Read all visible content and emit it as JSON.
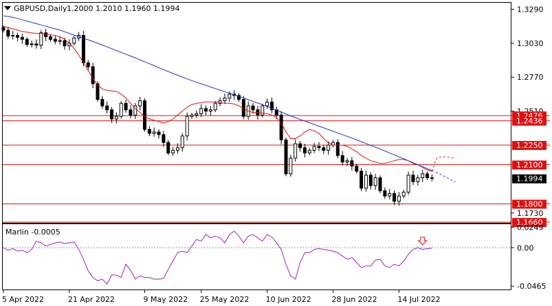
{
  "header": {
    "symbol_text": "GBPUSD,Daily",
    "ohlc_text": "1.2000 1.2010 1.1960 1.1994"
  },
  "indicator": {
    "label_text": "Marlin -0.0005",
    "color": "#a020c0"
  },
  "colors": {
    "candle": "#000000",
    "ma_slow": "#2233cc",
    "ma_fast": "#e01010",
    "level_line": "#e01010",
    "arrow": "#e01010",
    "current_price_bg": "#000000"
  },
  "chart_data": [
    {
      "type": "candlestick",
      "title": "GBPUSD,Daily",
      "x_ticks": [
        "5 Apr 2022",
        "21 Apr 2022",
        "9 May 2022",
        "25 May 2022",
        "10 Jun 2022",
        "28 Jun 2022",
        "14 Jul 2022"
      ],
      "y_ticks": [
        "1.3290",
        "1.3030",
        "1.2770",
        "1.2510",
        "1.1730"
      ],
      "ylim": [
        1.1655,
        1.334
      ],
      "levels": [
        {
          "label": "1.2476",
          "value": 1.2476
        },
        {
          "label": "1.2436",
          "value": 1.2436
        },
        {
          "label": "1.2250",
          "value": 1.225
        },
        {
          "label": "1.2100",
          "value": 1.21
        },
        {
          "label": "1.1800",
          "value": 1.18
        },
        {
          "label": "1.1660",
          "value": 1.166
        }
      ],
      "current_price": {
        "label": "1.1994",
        "value": 1.1994
      },
      "closes": [
        1.313,
        1.3085,
        1.309,
        1.3075,
        1.306,
        1.302,
        1.3025,
        1.3015,
        1.311,
        1.308,
        1.306,
        1.3045,
        1.305,
        1.301,
        1.303,
        1.307,
        1.309,
        1.288,
        1.285,
        1.272,
        1.26,
        1.255,
        1.252,
        1.245,
        1.247,
        1.257,
        1.252,
        1.248,
        1.255,
        1.259,
        1.237,
        1.234,
        1.235,
        1.233,
        1.227,
        1.219,
        1.221,
        1.223,
        1.232,
        1.247,
        1.248,
        1.249,
        1.253,
        1.251,
        1.252,
        1.257,
        1.259,
        1.261,
        1.264,
        1.263,
        1.26,
        1.247,
        1.255,
        1.252,
        1.248,
        1.255,
        1.258,
        1.252,
        1.248,
        1.229,
        1.203,
        1.215,
        1.226,
        1.223,
        1.219,
        1.221,
        1.224,
        1.223,
        1.221,
        1.225,
        1.227,
        1.217,
        1.212,
        1.213,
        1.209,
        1.205,
        1.192,
        1.202,
        1.194,
        1.2,
        1.19,
        1.186,
        1.188,
        1.182,
        1.186,
        1.189,
        1.202,
        1.197,
        1.2,
        1.203,
        1.2,
        1.1994
      ],
      "ma_slow": [
        1.324,
        1.3235,
        1.3228,
        1.322,
        1.321,
        1.32,
        1.319,
        1.318,
        1.317,
        1.316,
        1.315,
        1.314,
        1.313,
        1.3118,
        1.3105,
        1.3092,
        1.308,
        1.3068,
        1.3056,
        1.3043,
        1.303,
        1.3016,
        1.3002,
        1.2988,
        1.2974,
        1.296,
        1.2946,
        1.2932,
        1.2918,
        1.2903,
        1.2888,
        1.2873,
        1.2858,
        1.2843,
        1.2828,
        1.2813,
        1.2799,
        1.2785,
        1.2771,
        1.2757,
        1.2744,
        1.2731,
        1.2719,
        1.2707,
        1.2695,
        1.2683,
        1.2671,
        1.2659,
        1.2647,
        1.2635,
        1.2623,
        1.2611,
        1.2598,
        1.2585,
        1.2572,
        1.2559,
        1.2546,
        1.2532,
        1.2518,
        1.2503,
        1.2488,
        1.2474,
        1.246,
        1.2447,
        1.2434,
        1.2421,
        1.2408,
        1.2395,
        1.2382,
        1.2369,
        1.2356,
        1.2343,
        1.233,
        1.2317,
        1.2304,
        1.229,
        1.2276,
        1.2262,
        1.2248,
        1.2234,
        1.222,
        1.2205,
        1.219,
        1.2175,
        1.216,
        1.2145,
        1.213,
        1.2115,
        1.21,
        1.2085,
        1.207,
        1.2055
      ],
      "ma_slow_projection": [
        1.204,
        1.2022,
        1.2004,
        1.1986,
        1.1968
      ],
      "ma_fast": [
        1.316,
        1.315,
        1.314,
        1.313,
        1.312,
        1.3115,
        1.311,
        1.3105,
        1.3105,
        1.31,
        1.3095,
        1.309,
        1.308,
        1.306,
        1.303,
        1.299,
        1.294,
        1.288,
        1.282,
        1.276,
        1.271,
        1.268,
        1.267,
        1.2665,
        1.266,
        1.264,
        1.261,
        1.257,
        1.253,
        1.25,
        1.247,
        1.245,
        1.244,
        1.243,
        1.242,
        1.243,
        1.245,
        1.248,
        1.251,
        1.254,
        1.256,
        1.257,
        1.2575,
        1.258,
        1.258,
        1.258,
        1.2575,
        1.257,
        1.257,
        1.2565,
        1.255,
        1.253,
        1.251,
        1.25,
        1.25,
        1.2495,
        1.249,
        1.248,
        1.246,
        1.242,
        1.235,
        1.23,
        1.23,
        1.232,
        1.235,
        1.237,
        1.236,
        1.234,
        1.23,
        1.227,
        1.225,
        1.225,
        1.225,
        1.224,
        1.222,
        1.22,
        1.217,
        1.215,
        1.213,
        1.212,
        1.211,
        1.211,
        1.212,
        1.213,
        1.214,
        1.214,
        1.213,
        1.211,
        1.21,
        1.208,
        1.206,
        1.205
      ],
      "ma_fast_projection": [
        1.215,
        1.216,
        1.216,
        1.2155,
        1.215
      ]
    },
    {
      "type": "line",
      "title": "Marlin -0.0005",
      "y_ticks": [
        "0.0249",
        "0.00",
        "-0.0465"
      ],
      "ylim": [
        -0.0505,
        0.0285
      ],
      "marker": {
        "type": "down-arrow",
        "bar_index": 89
      },
      "values": [
        -0.0,
        -0.003,
        -0.001,
        -0.004,
        -0.003,
        -0.006,
        -0.002,
        0.008,
        0.006,
        0.002,
        0.004,
        0.006,
        0.007,
        0.005,
        0.006,
        0.007,
        -0.002,
        -0.014,
        -0.028,
        -0.036,
        -0.04,
        -0.038,
        -0.044,
        -0.033,
        -0.033,
        -0.036,
        -0.02,
        -0.027,
        -0.038,
        -0.034,
        -0.036,
        -0.036,
        -0.038,
        -0.038,
        -0.037,
        -0.026,
        -0.016,
        -0.006,
        -0.004,
        -0.006,
        0.002,
        0.01,
        0.008,
        0.016,
        0.012,
        0.014,
        0.012,
        0.006,
        0.016,
        0.02,
        0.014,
        0.006,
        0.014,
        0.016,
        0.012,
        0.008,
        0.016,
        0.013,
        0.006,
        -0.002,
        -0.02,
        -0.034,
        -0.038,
        -0.018,
        -0.006,
        -0.006,
        -0.002,
        -0.001,
        -0.002,
        -0.003,
        -0.004,
        -0.006,
        -0.01,
        -0.014,
        -0.012,
        -0.018,
        -0.024,
        -0.022,
        -0.022,
        -0.015,
        -0.014,
        -0.022,
        -0.024,
        -0.02,
        -0.022,
        -0.016,
        -0.008,
        -0.002,
        0.0,
        -0.002,
        -0.001,
        -0.0005
      ]
    }
  ]
}
